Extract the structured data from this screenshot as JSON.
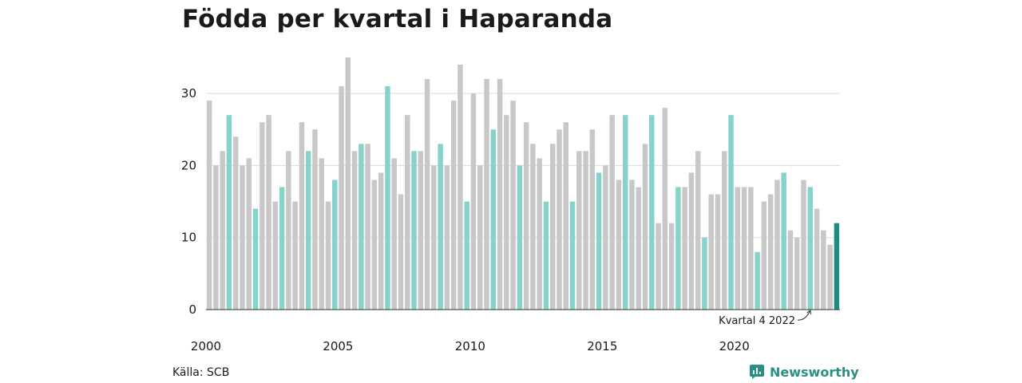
{
  "header": {
    "title": "Födda per kvartal i Haparanda"
  },
  "footer": {
    "source": "Källa: SCB",
    "brand": "Newsworthy"
  },
  "chart_data": {
    "type": "bar",
    "title": "Födda per kvartal i Haparanda",
    "xlabel": "",
    "ylabel": "",
    "ylim": [
      0,
      36
    ],
    "yticks": [
      0,
      10,
      20,
      30
    ],
    "xtick_labels": [
      "2000",
      "2005",
      "2010",
      "2015",
      "2020"
    ],
    "grid": true,
    "colors": {
      "default": "#c8c8c8",
      "q4": "#86d3cc",
      "latest": "#1c8c80",
      "grid": "#dcdcdc",
      "axis": "#333333"
    },
    "annotation": {
      "label": "Kvartal 4 2022"
    },
    "series": [
      {
        "values": [
          29,
          20,
          22,
          27,
          24,
          20,
          21,
          14,
          26,
          27,
          15,
          17,
          22,
          15,
          26,
          22,
          25,
          21,
          15,
          18,
          31,
          35,
          22,
          23,
          23,
          18,
          19,
          31,
          21,
          16,
          27,
          22,
          22,
          32,
          20,
          23,
          20,
          29,
          34,
          15,
          30,
          20,
          32,
          25,
          32,
          27,
          29,
          20,
          26,
          23,
          21,
          15,
          23,
          25,
          26,
          15,
          22,
          22,
          25,
          19,
          20,
          27,
          18,
          27,
          18,
          17,
          23,
          27,
          12,
          28,
          12,
          17,
          17,
          19,
          22,
          10,
          16,
          16,
          22,
          27,
          17,
          17,
          17,
          8,
          15,
          16,
          18,
          19,
          11,
          10,
          18,
          17,
          14,
          11,
          9,
          12
        ]
      }
    ]
  }
}
